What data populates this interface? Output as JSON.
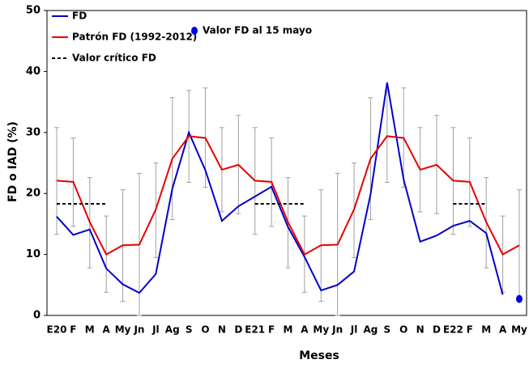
{
  "chart_data": {
    "type": "line",
    "x_label": "Meses",
    "y_label": "FD o IAD (%)",
    "categories": [
      "E20",
      "F",
      "M",
      "A",
      "My",
      "Jn",
      "Jl",
      "Ag",
      "S",
      "O",
      "N",
      "D",
      "E21",
      "F",
      "M",
      "A",
      "My",
      "Jn",
      "Jl",
      "Ag",
      "S",
      "O",
      "N",
      "D",
      "E22",
      "F",
      "M",
      "A",
      "My"
    ],
    "ylim": [
      0,
      50
    ],
    "yticks": [
      0,
      10,
      20,
      30,
      40,
      50
    ],
    "series": [
      {
        "name": "FD",
        "color": "#0000cc",
        "style": "line",
        "values": [
          16.2,
          13.2,
          14.1,
          7.7,
          5.1,
          3.7,
          6.8,
          20.8,
          30.0,
          23.8,
          15.5,
          17.9,
          19.5,
          21.1,
          14.5,
          9.6,
          4.1,
          5.0,
          7.2,
          19.9,
          38.2,
          22.3,
          12.1,
          13.1,
          14.7,
          15.5,
          13.5,
          3.4,
          null
        ]
      },
      {
        "name": "Patrón FD (1992-2012)",
        "color": "#e60000",
        "style": "line",
        "values": [
          22.1,
          21.9,
          15.3,
          10.0,
          11.5,
          11.6,
          17.4,
          25.7,
          29.4,
          29.1,
          23.9,
          24.7,
          22.1,
          21.9,
          15.3,
          10.0,
          11.5,
          11.6,
          17.4,
          25.7,
          29.4,
          29.1,
          23.9,
          24.7,
          22.1,
          21.9,
          15.3,
          10.0,
          11.5
        ],
        "lower": [
          13.3,
          14.6,
          7.8,
          3.8,
          2.3,
          0,
          9.5,
          15.7,
          21.8,
          21.0,
          17.0,
          16.7,
          13.3,
          14.6,
          7.8,
          3.8,
          2.3,
          0,
          9.5,
          15.7,
          21.8,
          21.0,
          17.0,
          16.7,
          13.3,
          14.6,
          7.8,
          3.8,
          2.3
        ],
        "upper": [
          30.8,
          29.1,
          22.6,
          16.3,
          20.6,
          23.3,
          25.0,
          35.7,
          36.9,
          37.3,
          30.8,
          32.8,
          30.8,
          29.1,
          22.6,
          16.3,
          20.6,
          23.3,
          25.0,
          35.7,
          36.9,
          37.3,
          30.8,
          32.8,
          30.8,
          29.1,
          22.6,
          16.3,
          20.6
        ],
        "error_color": "#a0a0a0"
      },
      {
        "name": "Valor crítico FD",
        "color": "#000000",
        "style": "dashed",
        "values": [
          18.3,
          18.3,
          18.3,
          18.3,
          null,
          null,
          null,
          null,
          null,
          null,
          null,
          null,
          18.3,
          18.3,
          18.3,
          18.3,
          null,
          null,
          null,
          null,
          null,
          null,
          null,
          null,
          18.3,
          18.3,
          18.3,
          null,
          null
        ]
      },
      {
        "name": "Valor FD al 15 mayo",
        "color": "#0000ee",
        "style": "point",
        "values": [
          null,
          null,
          null,
          null,
          null,
          null,
          null,
          null,
          null,
          null,
          null,
          null,
          null,
          null,
          null,
          null,
          null,
          null,
          null,
          null,
          null,
          null,
          null,
          null,
          null,
          null,
          null,
          null,
          2.7
        ]
      }
    ]
  }
}
